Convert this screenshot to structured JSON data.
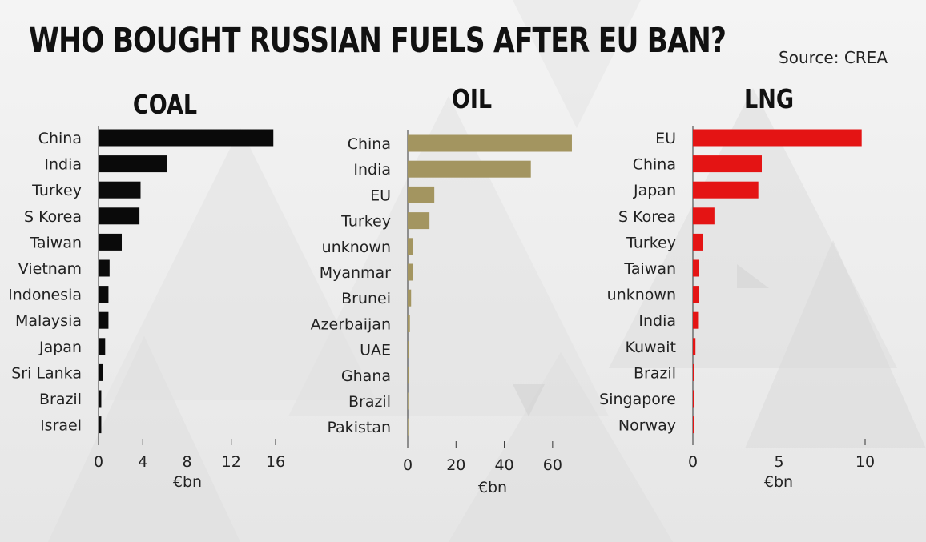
{
  "title": "WHO BOUGHT RUSSIAN FUELS AFTER EU BAN?",
  "source": "Source: CREA",
  "chart_data": [
    {
      "type": "bar",
      "orientation": "horizontal",
      "title": "COAL",
      "xlabel": "€bn",
      "xlim": [
        0,
        16
      ],
      "ticks": [
        0,
        4,
        8,
        12,
        16
      ],
      "color": "#0a0a0a",
      "categories": [
        "China",
        "India",
        "Turkey",
        "S Korea",
        "Taiwan",
        "Vietnam",
        "Indonesia",
        "Malaysia",
        "Japan",
        "Sri Lanka",
        "Brazil",
        "Israel"
      ],
      "values": [
        15.8,
        6.2,
        3.8,
        3.7,
        2.1,
        1.0,
        0.9,
        0.9,
        0.6,
        0.4,
        0.25,
        0.25
      ]
    },
    {
      "type": "bar",
      "orientation": "horizontal",
      "title": "OIL",
      "xlabel": "€bn",
      "xlim": [
        0,
        70
      ],
      "ticks": [
        0,
        20,
        40,
        60
      ],
      "color": "#a39560",
      "categories": [
        "China",
        "India",
        "EU",
        "Turkey",
        "unknown",
        "Myanmar",
        "Brunei",
        "Azerbaijan",
        "UAE",
        "Ghana",
        "Brazil",
        "Pakistan"
      ],
      "values": [
        68,
        51,
        11,
        9,
        2.2,
        2.0,
        1.4,
        0.9,
        0.5,
        0.4,
        0.2,
        0.1
      ]
    },
    {
      "type": "bar",
      "orientation": "horizontal",
      "title": "LNG",
      "xlabel": "€bn",
      "xlim": [
        0,
        10
      ],
      "ticks": [
        0,
        5,
        10
      ],
      "color": "#e41414",
      "categories": [
        "EU",
        "China",
        "Japan",
        "S Korea",
        "Turkey",
        "Taiwan",
        "unknown",
        "India",
        "Kuwait",
        "Brazil",
        "Singapore",
        "Norway"
      ],
      "values": [
        9.8,
        4.0,
        3.8,
        1.25,
        0.6,
        0.35,
        0.35,
        0.3,
        0.15,
        0.08,
        0.06,
        0.05
      ]
    }
  ]
}
